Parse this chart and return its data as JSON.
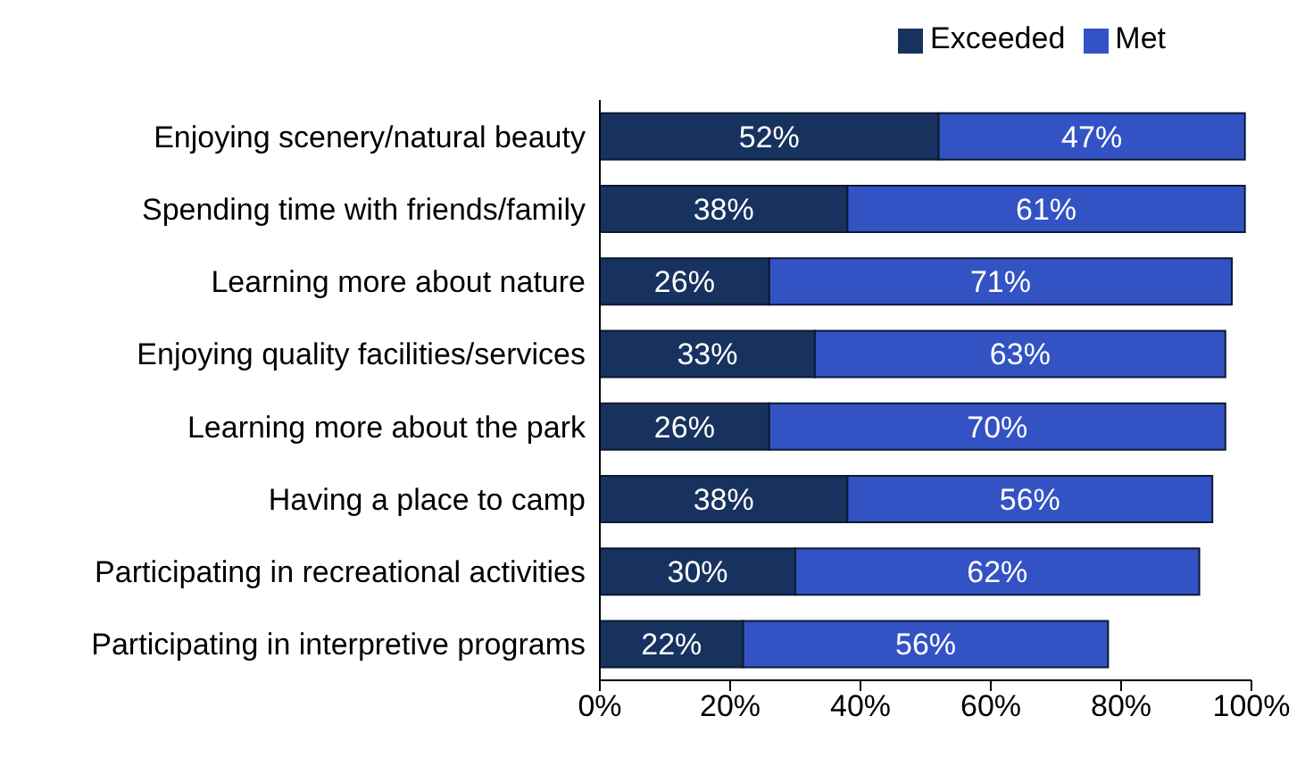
{
  "chart_data": {
    "type": "bar",
    "orientation": "horizontal",
    "stacked": true,
    "categories": [
      "Enjoying scenery/natural beauty",
      "Spending time with friends/family",
      "Learning more about nature",
      "Enjoying quality facilities/services",
      "Learning more about the park",
      "Having a place to camp",
      "Participating in recreational activities",
      "Participating in interpretive programs"
    ],
    "series": [
      {
        "name": "Exceeded",
        "color": "#17325f",
        "values": [
          52,
          38,
          26,
          33,
          26,
          38,
          30,
          22
        ],
        "value_labels": [
          "52%",
          "38%",
          "26%",
          "33%",
          "26%",
          "38%",
          "30%",
          "22%"
        ]
      },
      {
        "name": "Met",
        "color": "#3352c4",
        "values": [
          47,
          61,
          71,
          63,
          70,
          56,
          62,
          56
        ],
        "value_labels": [
          "47%",
          "61%",
          "71%",
          "63%",
          "70%",
          "56%",
          "62%",
          "56%"
        ]
      }
    ],
    "xlim": [
      0,
      100
    ],
    "xticks": [
      {
        "value": 0,
        "label": "0%"
      },
      {
        "value": 20,
        "label": "20%"
      },
      {
        "value": 40,
        "label": "40%"
      },
      {
        "value": 60,
        "label": "60%"
      },
      {
        "value": 80,
        "label": "80%"
      },
      {
        "value": 100,
        "label": "100%"
      }
    ],
    "grid": false,
    "legend": "top right"
  }
}
